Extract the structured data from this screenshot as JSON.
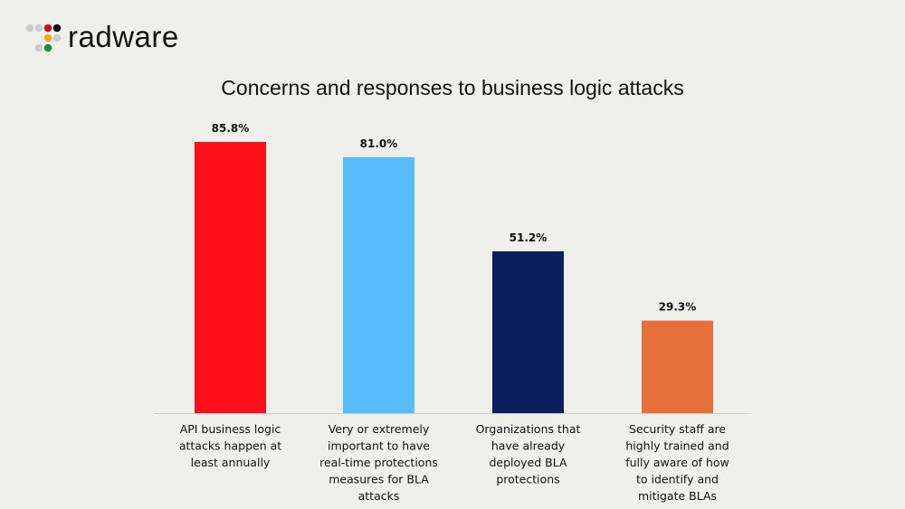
{
  "logo": {
    "text": "radware",
    "dot_colors": [
      "#cccccc",
      "#cccccc",
      "#c8102e",
      "#111111",
      "#f5a623",
      "#cccccc",
      "#cccccc",
      "#1a8f3c"
    ]
  },
  "chart_data": {
    "type": "bar",
    "title": "Concerns and responses to business logic attacks",
    "categories": [
      [
        "API business logic",
        "attacks happen at",
        "least annually"
      ],
      [
        "Very or extremely",
        "important to have",
        "real-time protections",
        "measures for BLA",
        "attacks"
      ],
      [
        "Organizations that",
        "have already",
        "deployed BLA",
        "protections"
      ],
      [
        "Security staff are",
        "highly trained and",
        "fully aware of how",
        "to identify and",
        "mitigate BLAs"
      ]
    ],
    "values": [
      85.8,
      81.0,
      51.2,
      29.3
    ],
    "data_labels": [
      "85.8%",
      "81.0%",
      "51.2%",
      "29.3%"
    ],
    "colors": [
      "#ff0f1a",
      "#58bdf8",
      "#0a1f5c",
      "#e5703a"
    ],
    "ylim": [
      0,
      100
    ],
    "grid": false,
    "legend": "none"
  }
}
